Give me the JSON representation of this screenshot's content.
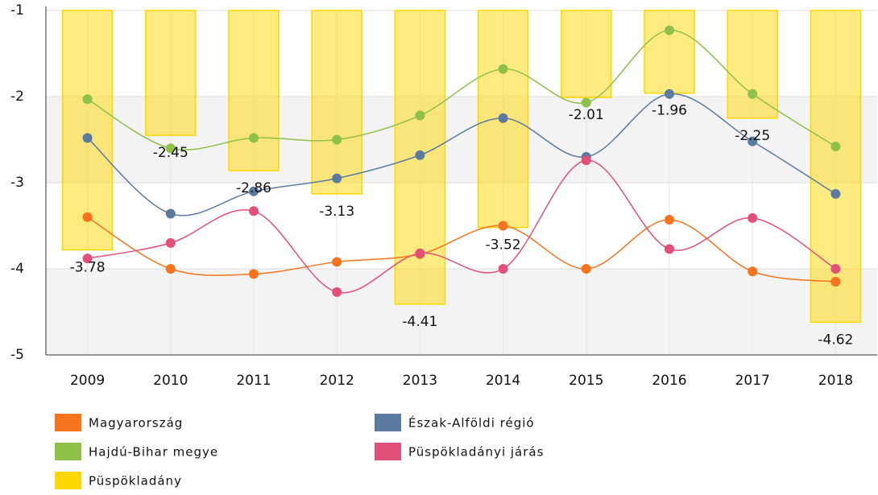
{
  "chart_data": {
    "type": "line",
    "categories": [
      "2009",
      "2010",
      "2011",
      "2012",
      "2013",
      "2014",
      "2015",
      "2016",
      "2017",
      "2018"
    ],
    "series": [
      {
        "name": "Magyarország",
        "color": "#f7731e",
        "type": "line",
        "values": [
          -3.4,
          -4.0,
          -4.06,
          -3.92,
          -3.83,
          -3.5,
          -4.0,
          -3.43,
          -4.03,
          -4.15
        ]
      },
      {
        "name": "Észak-Alföldi régió",
        "color": "#5b7aa0",
        "type": "line",
        "values": [
          -2.48,
          -3.36,
          -3.1,
          -2.95,
          -2.68,
          -2.25,
          -2.7,
          -1.97,
          -2.52,
          -3.13
        ]
      },
      {
        "name": "Hajdú-Bihar megye",
        "color": "#8fc04a",
        "type": "line",
        "values": [
          -2.03,
          -2.6,
          -2.48,
          -2.5,
          -2.22,
          -1.68,
          -2.07,
          -1.23,
          -1.97,
          -2.58
        ]
      },
      {
        "name": "Püspökladányi járás",
        "color": "#e2507a",
        "type": "line",
        "values": [
          -3.88,
          -3.7,
          -3.33,
          -4.27,
          -3.82,
          -4.0,
          -2.74,
          -3.77,
          -3.41,
          -4.0
        ]
      },
      {
        "name": "Püspökladány",
        "color": "#ffd700",
        "type": "bar",
        "values": [
          -3.78,
          -2.45,
          -2.86,
          -3.13,
          -4.41,
          -3.52,
          -2.01,
          -1.96,
          -2.25,
          -4.62
        ]
      }
    ],
    "ylim": [
      -5,
      -1
    ],
    "yticks": [
      -5,
      -4,
      -3,
      -2,
      -1
    ],
    "grid": true
  }
}
